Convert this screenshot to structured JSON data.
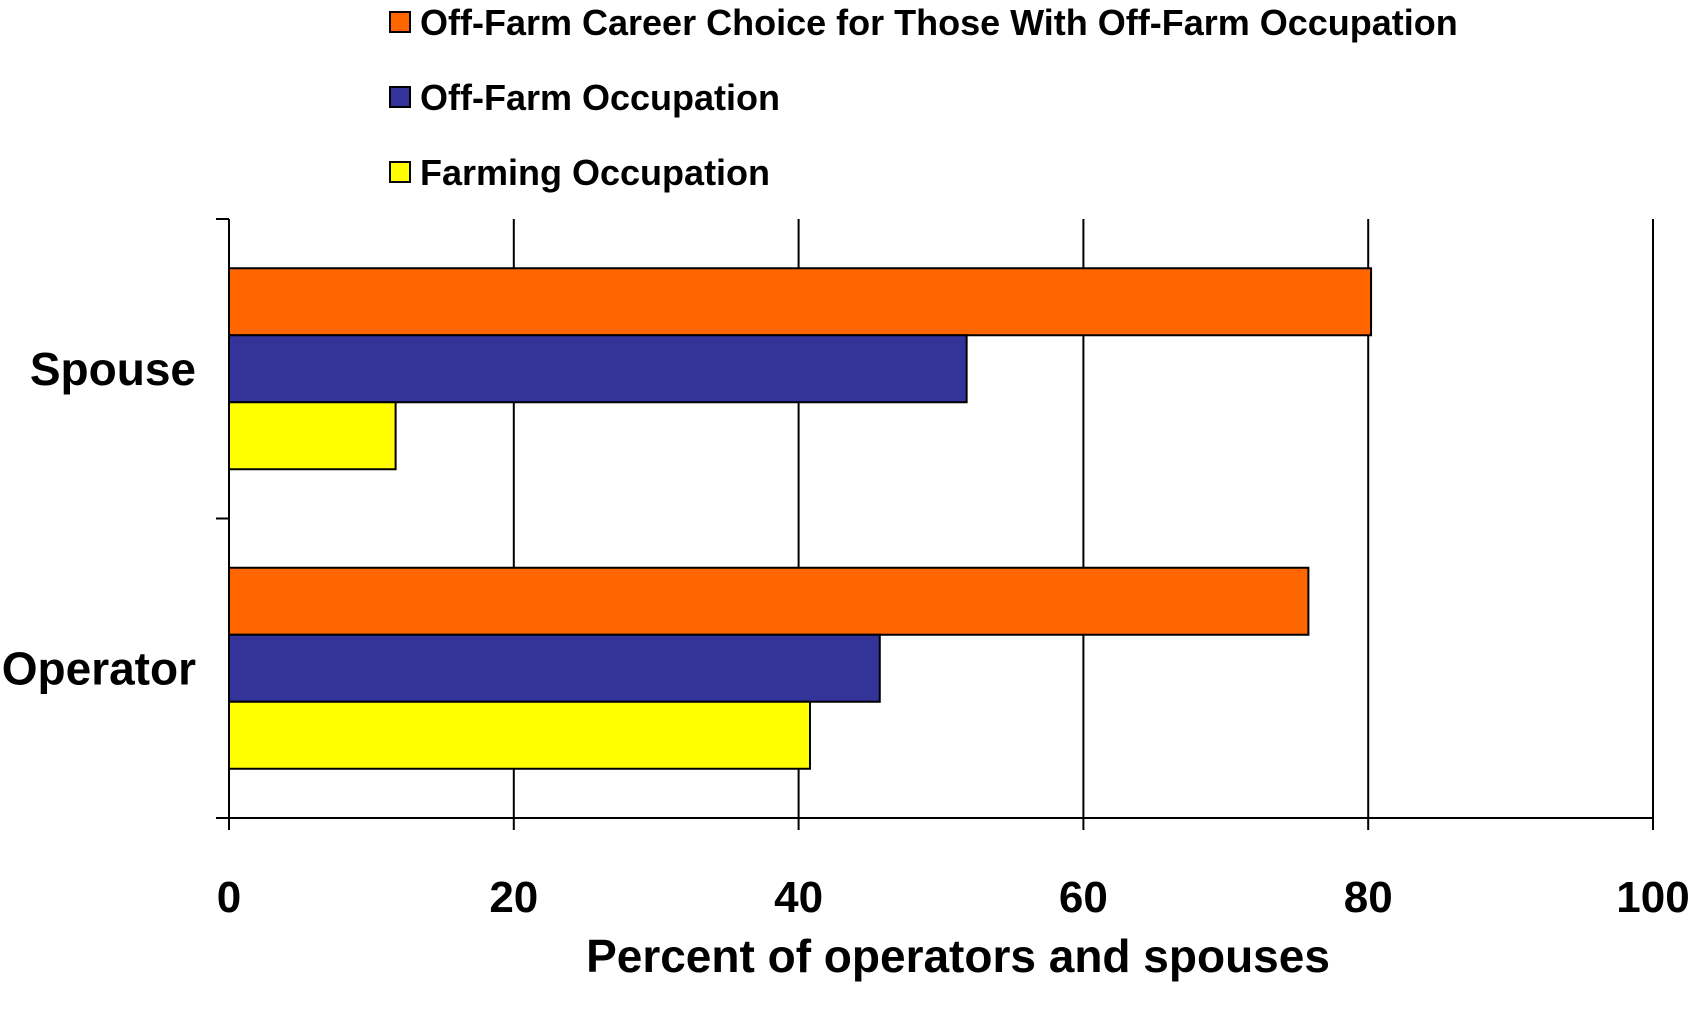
{
  "chart_data": {
    "type": "bar",
    "orientation": "horizontal",
    "categories": [
      "Spouse",
      "Operator"
    ],
    "series": [
      {
        "name": "Off-Farm Career Choice for Those With Off-Farm Occupation",
        "color": "#FF6600",
        "values": [
          80.2,
          75.8
        ]
      },
      {
        "name": "Off-Farm Occupation",
        "color": "#333399",
        "values": [
          51.8,
          45.7
        ]
      },
      {
        "name": "Farming Occupation",
        "color": "#FFFF00",
        "values": [
          11.7,
          40.8
        ]
      }
    ],
    "xlabel": "Percent of operators and spouses",
    "ylabel": "",
    "xlim": [
      0,
      100
    ],
    "xticks": [
      "0",
      "20",
      "40",
      "60",
      "80",
      "100"
    ],
    "grid": "vertical",
    "legend": "top"
  }
}
